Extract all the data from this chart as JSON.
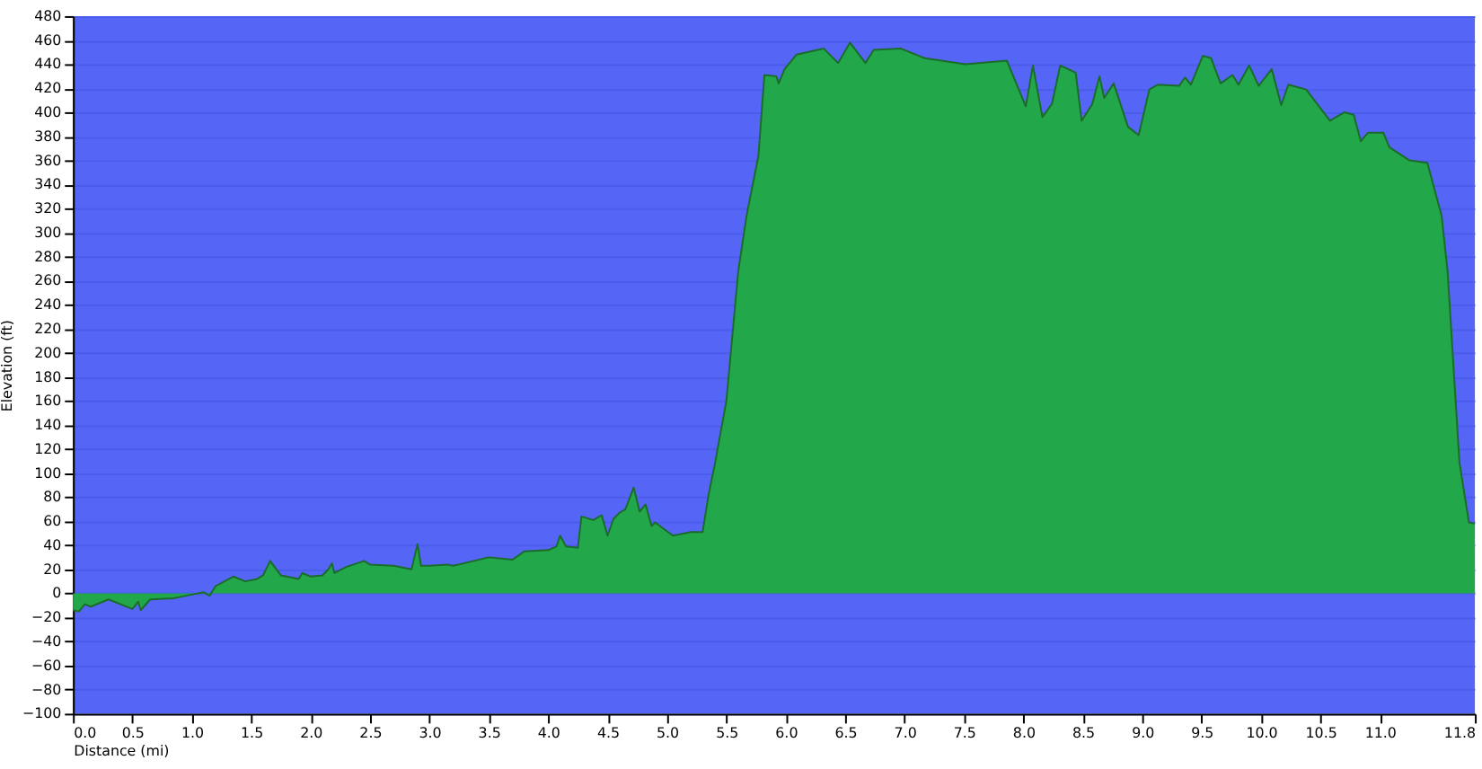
{
  "chart_data": {
    "type": "area",
    "xlabel": "Distance   (mi)",
    "ylabel": "Elevation (ft)",
    "x": [
      0,
      0.05,
      0.1,
      0.15,
      0.3,
      0.5,
      0.55,
      0.57,
      0.65,
      0.85,
      1.0,
      1.1,
      1.15,
      1.2,
      1.35,
      1.45,
      1.55,
      1.6,
      1.66,
      1.75,
      1.9,
      1.93,
      2.0,
      2.1,
      2.15,
      2.18,
      2.2,
      2.3,
      2.45,
      2.5,
      2.7,
      2.85,
      2.9,
      2.93,
      3.0,
      3.15,
      3.2,
      3.5,
      3.7,
      3.8,
      4.0,
      4.07,
      4.1,
      4.15,
      4.25,
      4.28,
      4.38,
      4.45,
      4.5,
      4.55,
      4.6,
      4.65,
      4.72,
      4.77,
      4.82,
      4.87,
      4.9,
      5.05,
      5.2,
      5.3,
      5.35,
      5.4,
      5.5,
      5.6,
      5.67,
      5.77,
      5.82,
      5.92,
      5.94,
      5.99,
      6.09,
      6.32,
      6.44,
      6.54,
      6.67,
      6.74,
      6.97,
      7.17,
      7.31,
      7.51,
      7.86,
      8.02,
      8.08,
      8.16,
      8.24,
      8.31,
      8.44,
      8.49,
      8.58,
      8.64,
      8.68,
      8.76,
      8.88,
      8.97,
      9.06,
      9.13,
      9.31,
      9.36,
      9.41,
      9.51,
      9.58,
      9.66,
      9.76,
      9.81,
      9.9,
      9.98,
      10.09,
      10.17,
      10.23,
      10.38,
      10.58,
      10.7,
      10.78,
      10.84,
      10.9,
      11.03,
      11.08,
      11.25,
      11.4,
      11.52,
      11.57,
      11.67,
      11.75,
      11.8
    ],
    "series": [
      {
        "color": "#22a84a",
        "values": [
          -14,
          -15,
          -9,
          -11,
          -5,
          -13,
          -7,
          -14,
          -5,
          -4,
          -1,
          1,
          -2,
          6,
          14,
          10,
          12,
          15,
          27,
          15,
          12,
          17,
          14,
          15,
          20,
          25,
          17,
          22,
          27,
          24,
          23,
          20,
          41,
          23,
          23,
          24,
          23,
          30,
          28,
          35,
          36,
          39,
          48,
          39,
          38,
          64,
          61,
          65,
          48,
          62,
          67,
          70,
          88,
          68,
          74,
          56,
          59,
          48,
          51,
          51,
          82,
          106,
          160,
          268,
          314,
          364,
          431,
          430,
          424,
          436,
          448,
          453,
          441,
          458,
          441,
          452,
          453,
          445,
          443,
          440,
          443,
          405,
          439,
          396,
          407,
          439,
          433,
          393,
          407,
          430,
          412,
          424,
          388,
          381,
          419,
          423,
          422,
          429,
          423,
          447,
          445,
          424,
          431,
          423,
          439,
          422,
          436,
          406,
          423,
          419,
          393,
          400,
          398,
          376,
          383,
          383,
          371,
          360,
          358,
          314,
          268,
          109,
          59,
          58
        ]
      }
    ],
    "xlim": [
      0,
      11.8
    ],
    "xticks": [
      {
        "value": 0,
        "label": "0.0"
      },
      0.5,
      {
        "value": 1,
        "label": "1.0"
      },
      1.5,
      {
        "value": 2,
        "label": "2.0"
      },
      2.5,
      {
        "value": 3,
        "label": "3.0"
      },
      3.5,
      {
        "value": 4,
        "label": "4.0"
      },
      4.5,
      {
        "value": 5,
        "label": "5.0"
      },
      5.5,
      {
        "value": 6,
        "label": "6.0"
      },
      6.5,
      {
        "value": 7,
        "label": "7.0"
      },
      7.5,
      {
        "value": 8,
        "label": "8.0"
      },
      8.5,
      {
        "value": 9,
        "label": "9.0"
      },
      9.5,
      {
        "value": 10,
        "label": "10.0"
      },
      10.5,
      {
        "value": 11,
        "label": "11.0"
      },
      11.8
    ],
    "ylim": [
      -100,
      480
    ],
    "yticks": [
      -100,
      -80,
      -60,
      -40,
      -20,
      0,
      20,
      40,
      60,
      80,
      100,
      120,
      140,
      160,
      180,
      200,
      220,
      240,
      260,
      280,
      300,
      320,
      340,
      360,
      380,
      400,
      420,
      440,
      460,
      480
    ],
    "grid": "y",
    "legend": false
  }
}
